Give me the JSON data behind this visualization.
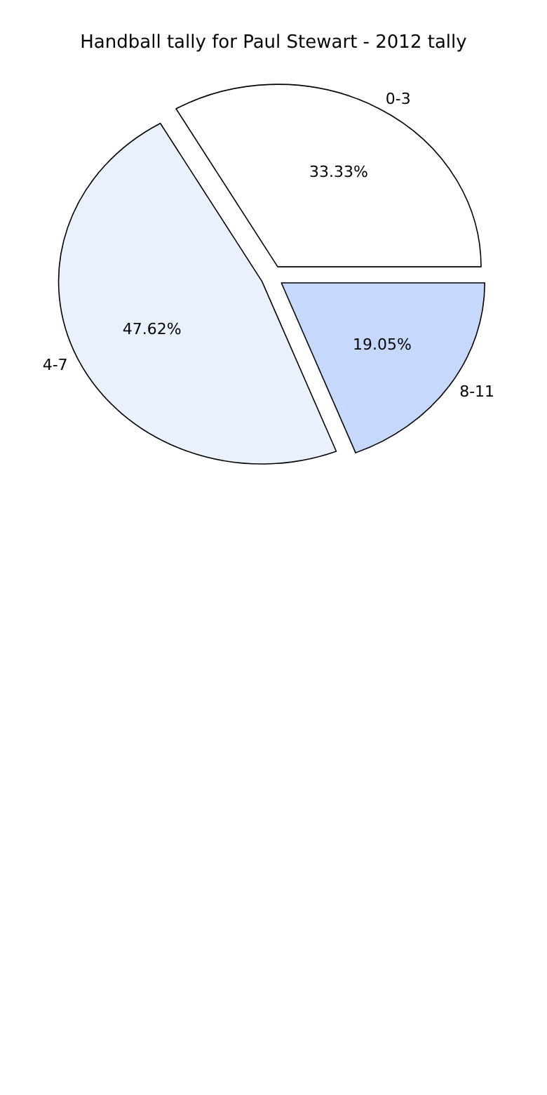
{
  "chart_data": {
    "type": "pie",
    "title": "Handball tally for Paul Stewart - 2012 tally",
    "categories": [
      "0-3",
      "4-7",
      "8-11"
    ],
    "values": [
      33.33,
      47.62,
      19.05
    ],
    "colors": [
      "#ffffff",
      "#eaf1fd",
      "#c6d9fd"
    ],
    "value_labels": [
      "33.33%",
      "47.62%",
      "19.05%"
    ]
  }
}
